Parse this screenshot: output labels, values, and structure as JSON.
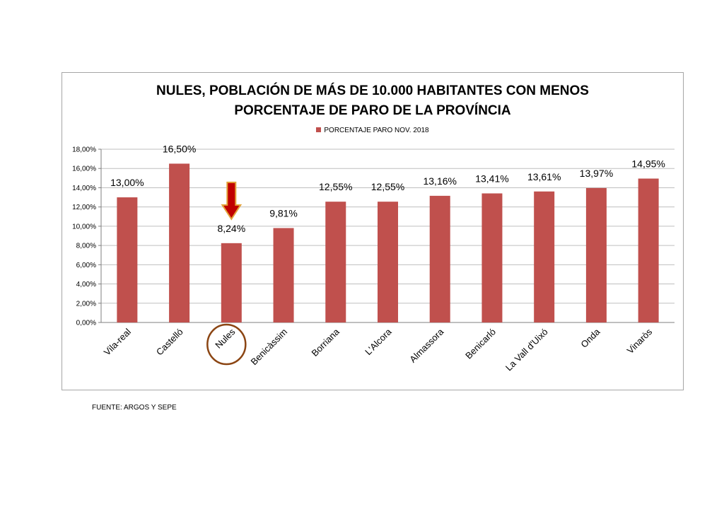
{
  "chart_data": {
    "type": "bar",
    "title_line1": "NULES, POBLACIÓN DE MÁS DE 10.000 HABITANTES CON MENOS",
    "title_line2": "PORCENTAJE DE PARO DE LA PROVÍNCIA",
    "legend": [
      "PORCENTAJE PARO NOV. 2018"
    ],
    "categories": [
      "Vila-real",
      "Castelló",
      "Nules",
      "Benicàssim",
      "Borriana",
      "L'Alcora",
      "Almassora",
      "Benicarló",
      "La Vall d'Uixó",
      "Onda",
      "Vinaròs"
    ],
    "values": [
      13.0,
      16.5,
      8.24,
      9.81,
      12.55,
      12.55,
      13.16,
      13.41,
      13.61,
      13.97,
      14.95
    ],
    "data_labels": [
      "13,00%",
      "16,50%",
      "8,24%",
      "9,81%",
      "12,55%",
      "12,55%",
      "13,16%",
      "13,41%",
      "13,61%",
      "13,97%",
      "14,95%"
    ],
    "y_ticks": [
      0,
      2,
      4,
      6,
      8,
      10,
      12,
      14,
      16,
      18
    ],
    "y_tick_labels": [
      "0,00%",
      "2,00%",
      "4,00%",
      "6,00%",
      "8,00%",
      "10,00%",
      "12,00%",
      "14,00%",
      "16,00%",
      "18,00%"
    ],
    "ylim": [
      0,
      18
    ],
    "grid": true,
    "legend_position": "top-center",
    "xlabel": "",
    "ylabel": "",
    "highlight_category": "Nules",
    "annotations": [
      "down-arrow above Nules",
      "circle around Nules label"
    ]
  },
  "colors": {
    "bar": "#c0504d",
    "arrow_fill": "#c00000",
    "arrow_stroke": "#e3a33a",
    "circle": "#8b4513",
    "grid": "#bfbfbf"
  },
  "footer": {
    "source": "FUENTE: ARGOS Y SEPE"
  }
}
